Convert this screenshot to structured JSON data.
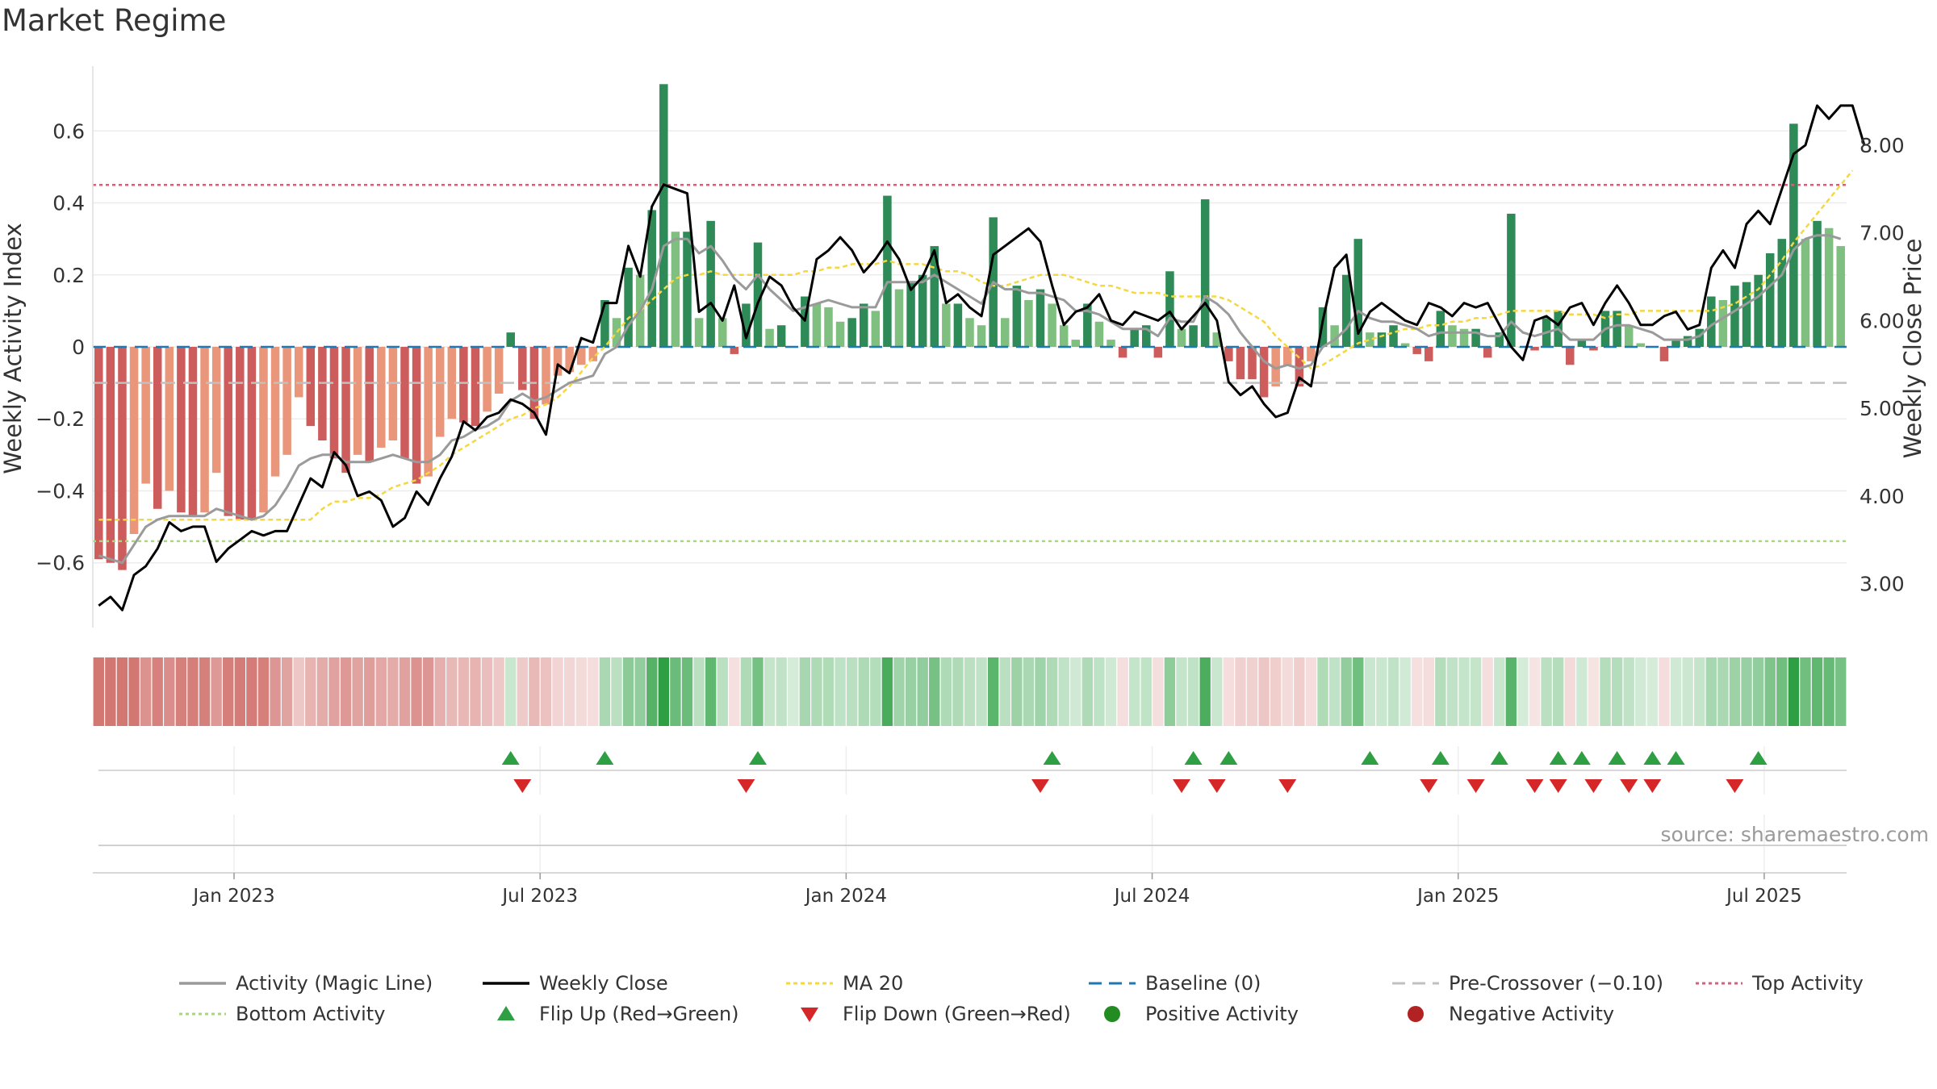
{
  "title": "Market Regime",
  "source": "source: sharemaestro.com",
  "chart_data": {
    "type": "bar",
    "title": "Market Regime",
    "ylabel": "Weekly Activity Index",
    "y2label": "Weekly Close Price",
    "ylim": [
      -0.78,
      0.78
    ],
    "y2lim": [
      2.5,
      8.9
    ],
    "yticks": [
      -0.6,
      -0.4,
      -0.2,
      0,
      0.2,
      0.4,
      0.6
    ],
    "ytick_labels": [
      "−0.6",
      "−0.4",
      "−0.2",
      "0",
      "0.2",
      "0.4",
      "0.6"
    ],
    "y2ticks": [
      3,
      4,
      5,
      6,
      7,
      8
    ],
    "y2tick_labels": [
      "3.00",
      "4.00",
      "5.00",
      "6.00",
      "7.00",
      "8.00"
    ],
    "x_start": "2022-10-09",
    "x_end": "2025-09-14",
    "xticks": [
      "Jan 2023",
      "Jul 2023",
      "Jan 2024",
      "Jul 2024",
      "Jan 2025",
      "Jul 2025"
    ],
    "xtick_weeks": [
      12,
      38,
      64,
      90,
      116,
      142
    ],
    "top_activity": 0.45,
    "bottom_activity": -0.54,
    "pre_crossover": -0.1,
    "baseline": 0,
    "activity": [
      -0.59,
      -0.6,
      -0.62,
      -0.52,
      -0.38,
      -0.45,
      -0.4,
      -0.46,
      -0.47,
      -0.46,
      -0.35,
      -0.47,
      -0.48,
      -0.48,
      -0.46,
      -0.36,
      -0.3,
      -0.14,
      -0.22,
      -0.26,
      -0.31,
      -0.35,
      -0.3,
      -0.32,
      -0.28,
      -0.26,
      -0.31,
      -0.38,
      -0.36,
      -0.25,
      -0.2,
      -0.21,
      -0.22,
      -0.18,
      -0.13,
      0.04,
      -0.12,
      -0.2,
      -0.16,
      -0.08,
      -0.07,
      -0.05,
      -0.04,
      0.13,
      0.08,
      0.22,
      0.2,
      0.38,
      0.73,
      0.32,
      0.32,
      0.08,
      0.35,
      0.08,
      -0.02,
      0.12,
      0.29,
      0.05,
      0.06,
      0.0,
      0.14,
      0.12,
      0.11,
      0.07,
      0.08,
      0.12,
      0.1,
      0.42,
      0.16,
      0.18,
      0.2,
      0.28,
      0.12,
      0.12,
      0.08,
      0.06,
      0.36,
      0.08,
      0.17,
      0.13,
      0.16,
      0.12,
      0.06,
      0.02,
      0.12,
      0.07,
      0.02,
      -0.03,
      0.05,
      0.06,
      -0.03,
      0.21,
      0.05,
      0.06,
      0.41,
      0.04,
      -0.04,
      -0.09,
      -0.09,
      -0.14,
      -0.11,
      -0.05,
      -0.11,
      -0.04,
      0.11,
      0.06,
      0.2,
      0.3,
      0.04,
      0.04,
      0.06,
      0.01,
      -0.02,
      -0.04,
      0.1,
      0.06,
      0.05,
      0.05,
      -0.03,
      0.04,
      0.37,
      0.0,
      -0.01,
      0.08,
      0.1,
      -0.05,
      0.02,
      -0.01,
      0.1,
      0.1,
      0.06,
      0.01,
      0.0,
      -0.04,
      0.02,
      0.03,
      0.05,
      0.14,
      0.13,
      0.17,
      0.18,
      0.2,
      0.26,
      0.3,
      0.62,
      0.3,
      0.35,
      0.33,
      0.28
    ],
    "magic_line": [
      -0.58,
      -0.59,
      -0.6,
      -0.55,
      -0.5,
      -0.48,
      -0.47,
      -0.47,
      -0.47,
      -0.47,
      -0.45,
      -0.46,
      -0.47,
      -0.48,
      -0.47,
      -0.44,
      -0.39,
      -0.33,
      -0.31,
      -0.3,
      -0.3,
      -0.32,
      -0.32,
      -0.32,
      -0.31,
      -0.3,
      -0.31,
      -0.32,
      -0.32,
      -0.3,
      -0.26,
      -0.25,
      -0.23,
      -0.22,
      -0.2,
      -0.15,
      -0.13,
      -0.15,
      -0.14,
      -0.12,
      -0.1,
      -0.09,
      -0.08,
      -0.02,
      0.0,
      0.06,
      0.1,
      0.16,
      0.28,
      0.3,
      0.3,
      0.26,
      0.28,
      0.24,
      0.19,
      0.16,
      0.2,
      0.16,
      0.13,
      0.1,
      0.11,
      0.12,
      0.13,
      0.12,
      0.11,
      0.11,
      0.11,
      0.18,
      0.18,
      0.18,
      0.18,
      0.2,
      0.18,
      0.16,
      0.14,
      0.12,
      0.18,
      0.16,
      0.16,
      0.15,
      0.15,
      0.14,
      0.13,
      0.1,
      0.1,
      0.09,
      0.07,
      0.05,
      0.05,
      0.05,
      0.03,
      0.08,
      0.07,
      0.07,
      0.14,
      0.12,
      0.09,
      0.04,
      0.0,
      -0.04,
      -0.06,
      -0.05,
      -0.06,
      -0.05,
      0.0,
      0.02,
      0.05,
      0.1,
      0.08,
      0.07,
      0.07,
      0.06,
      0.05,
      0.03,
      0.04,
      0.04,
      0.04,
      0.04,
      0.03,
      0.03,
      0.07,
      0.04,
      0.03,
      0.04,
      0.05,
      0.02,
      0.02,
      0.02,
      0.05,
      0.06,
      0.06,
      0.05,
      0.04,
      0.02,
      0.02,
      0.02,
      0.03,
      0.06,
      0.08,
      0.1,
      0.12,
      0.14,
      0.17,
      0.2,
      0.27,
      0.3,
      0.31,
      0.31,
      0.3
    ],
    "ma20": [
      -0.48,
      -0.48,
      -0.48,
      -0.48,
      -0.48,
      -0.48,
      -0.48,
      -0.48,
      -0.48,
      -0.48,
      -0.48,
      -0.48,
      -0.48,
      -0.48,
      -0.48,
      -0.48,
      -0.48,
      -0.48,
      -0.48,
      -0.45,
      -0.43,
      -0.43,
      -0.42,
      -0.42,
      -0.41,
      -0.39,
      -0.38,
      -0.37,
      -0.35,
      -0.33,
      -0.3,
      -0.28,
      -0.26,
      -0.24,
      -0.22,
      -0.2,
      -0.19,
      -0.17,
      -0.16,
      -0.14,
      -0.11,
      -0.07,
      -0.03,
      0.0,
      0.04,
      0.08,
      0.1,
      0.13,
      0.16,
      0.19,
      0.2,
      0.2,
      0.21,
      0.2,
      0.2,
      0.2,
      0.2,
      0.2,
      0.2,
      0.2,
      0.21,
      0.21,
      0.22,
      0.22,
      0.23,
      0.23,
      0.23,
      0.24,
      0.23,
      0.23,
      0.23,
      0.22,
      0.21,
      0.21,
      0.2,
      0.18,
      0.17,
      0.17,
      0.18,
      0.19,
      0.2,
      0.2,
      0.2,
      0.19,
      0.18,
      0.17,
      0.17,
      0.16,
      0.15,
      0.15,
      0.15,
      0.14,
      0.14,
      0.14,
      0.14,
      0.14,
      0.13,
      0.11,
      0.09,
      0.07,
      0.03,
      0.0,
      -0.03,
      -0.06,
      -0.05,
      -0.03,
      -0.01,
      0.01,
      0.02,
      0.03,
      0.04,
      0.05,
      0.05,
      0.06,
      0.06,
      0.07,
      0.07,
      0.08,
      0.08,
      0.09,
      0.1,
      0.1,
      0.1,
      0.1,
      0.1,
      0.09,
      0.09,
      0.09,
      0.08,
      0.09,
      0.09,
      0.1,
      0.1,
      0.1,
      0.1,
      0.1,
      0.1,
      0.1,
      0.11,
      0.12,
      0.14,
      0.16,
      0.2,
      0.24,
      0.29,
      0.33,
      0.37,
      0.41,
      0.45,
      0.49
    ],
    "weekly_close": [
      2.75,
      2.85,
      2.7,
      3.1,
      3.2,
      3.4,
      3.7,
      3.6,
      3.65,
      3.65,
      3.25,
      3.4,
      3.5,
      3.6,
      3.55,
      3.6,
      3.6,
      3.9,
      4.2,
      4.1,
      4.5,
      4.35,
      4.0,
      4.05,
      3.95,
      3.65,
      3.75,
      4.05,
      3.9,
      4.2,
      4.45,
      4.85,
      4.75,
      4.9,
      4.95,
      5.1,
      5.05,
      4.95,
      4.7,
      5.5,
      5.4,
      5.8,
      5.75,
      6.2,
      6.2,
      6.85,
      6.5,
      7.3,
      7.55,
      7.5,
      7.45,
      6.1,
      6.2,
      6.0,
      6.4,
      5.8,
      6.2,
      6.5,
      6.4,
      6.15,
      6.0,
      6.7,
      6.8,
      6.95,
      6.8,
      6.55,
      6.7,
      6.9,
      6.7,
      6.35,
      6.5,
      6.8,
      6.2,
      6.3,
      6.15,
      6.05,
      6.75,
      6.85,
      6.95,
      7.05,
      6.9,
      6.4,
      5.95,
      6.1,
      6.15,
      6.3,
      6.0,
      5.95,
      6.1,
      6.05,
      6.0,
      6.1,
      5.9,
      6.05,
      6.2,
      6.0,
      5.3,
      5.15,
      5.25,
      5.05,
      4.9,
      4.95,
      5.35,
      5.25,
      6.0,
      6.6,
      6.75,
      5.85,
      6.1,
      6.2,
      6.1,
      6.0,
      5.95,
      6.2,
      6.15,
      6.05,
      6.2,
      6.15,
      6.2,
      5.95,
      5.7,
      5.55,
      6.0,
      6.05,
      5.95,
      6.15,
      6.2,
      5.95,
      6.2,
      6.4,
      6.2,
      5.95,
      5.95,
      6.05,
      6.1,
      5.9,
      5.95,
      6.6,
      6.8,
      6.6,
      7.1,
      7.25,
      7.1,
      7.5,
      7.9,
      8.0,
      8.45,
      8.3,
      8.45,
      8.45,
      8.0
    ],
    "flip_up_weeks": [
      35,
      43,
      56,
      81,
      93,
      96,
      108,
      114,
      119,
      124,
      126,
      129,
      132,
      134,
      141
    ],
    "flip_down_weeks": [
      36,
      55,
      80,
      92,
      95,
      101,
      113,
      117,
      122,
      124,
      127,
      130,
      132,
      139
    ],
    "legend": {
      "activity_magic_line": "Activity (Magic Line)",
      "weekly_close": "Weekly Close",
      "ma20": "MA 20",
      "baseline": "Baseline (0)",
      "pre_crossover": "Pre-Crossover (−0.10)",
      "top_activity": "Top Activity",
      "bottom_activity": "Bottom Activity",
      "flip_up": "Flip Up (Red→Green)",
      "flip_down": "Flip Down (Green→Red)",
      "positive_activity": "Positive Activity",
      "negative_activity": "Negative Activity"
    }
  },
  "colors": {
    "pos_strong": "#2e8b57",
    "pos_light": "#7fbf7f",
    "neg_strong": "#cd5c5c",
    "neg_light": "#e9967a",
    "magic": "#9a9a9a",
    "close": "#000000",
    "ma20": "#f5d742",
    "baseline": "#1f77b4",
    "pre_crossover": "#c0c0c0",
    "top": "#d6607a",
    "bottom": "#a8d87a",
    "flip_up": "#2ea043",
    "flip_down": "#d62728",
    "pos_dot": "#228b22",
    "neg_dot": "#b22222"
  }
}
